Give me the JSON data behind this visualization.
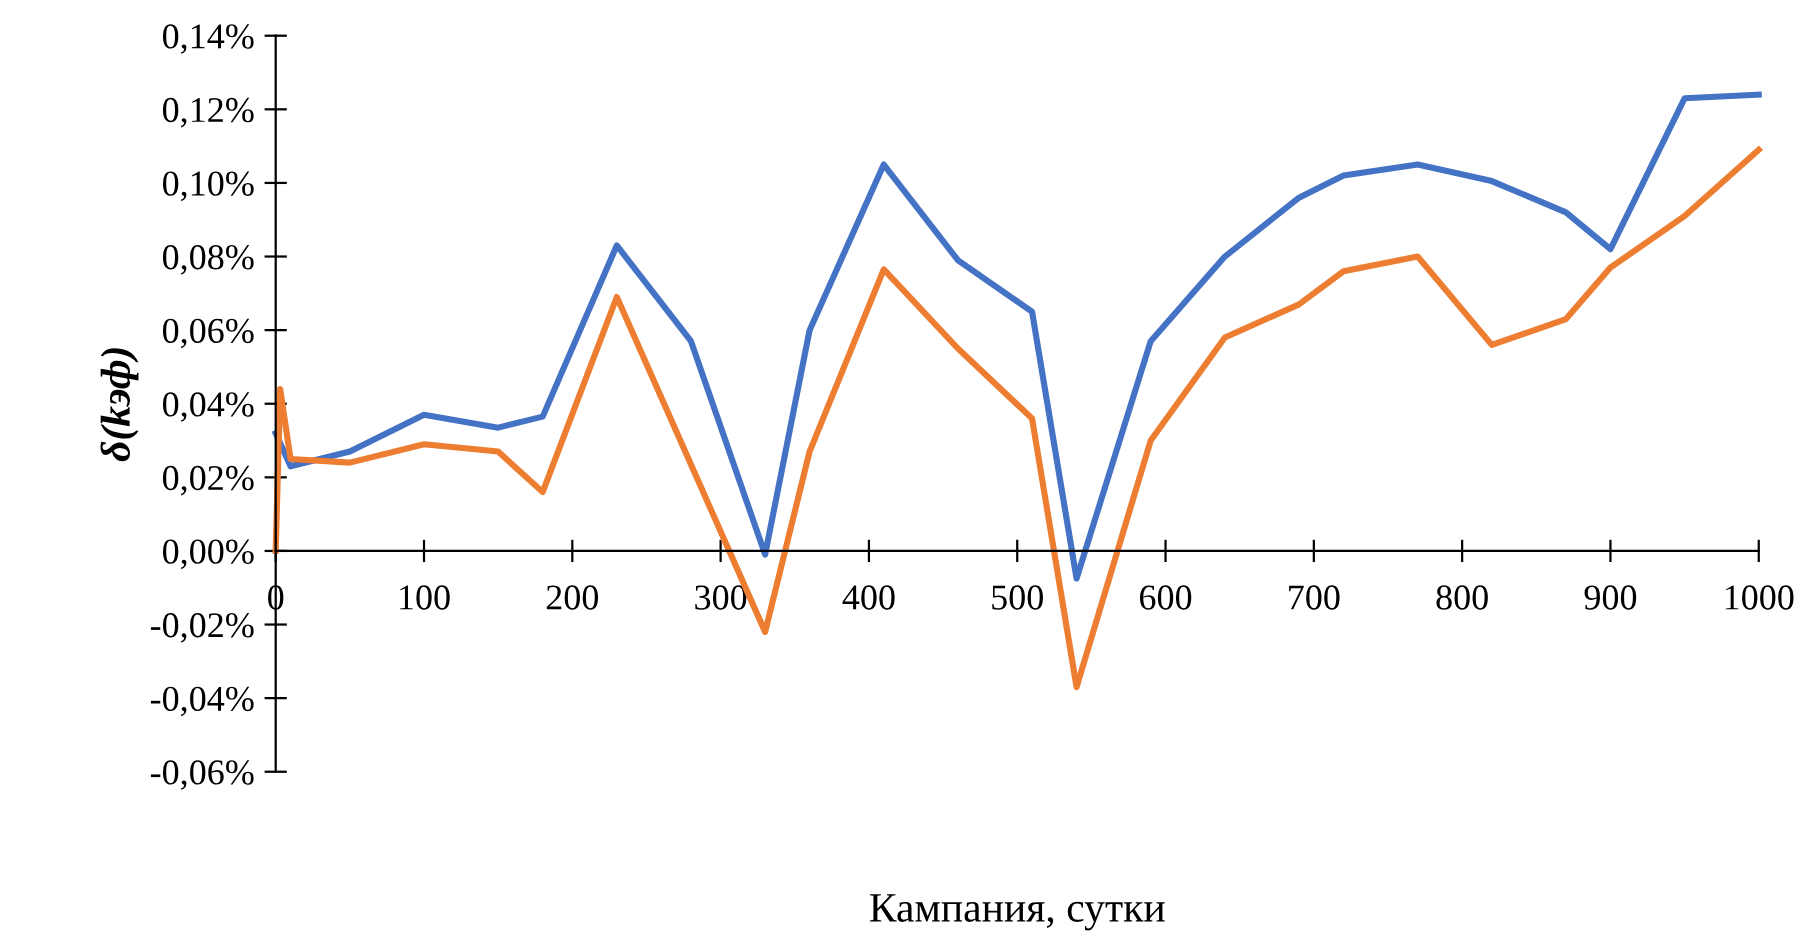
{
  "chart_data": {
    "type": "line",
    "xlabel": "Кампания, сутки",
    "ylabel": "δ(kэф)",
    "xlim": [
      0,
      1000
    ],
    "xticks": [
      0,
      100,
      200,
      300,
      400,
      500,
      600,
      700,
      800,
      900,
      1000
    ],
    "ylim": [
      -0.06,
      0.14
    ],
    "yticks": [
      {
        "value": -0.06,
        "label": "-0,06%"
      },
      {
        "value": -0.04,
        "label": "-0,04%"
      },
      {
        "value": -0.02,
        "label": "-0,02%"
      },
      {
        "value": 0,
        "label": "0,00%"
      },
      {
        "value": 0.02,
        "label": "0,02%"
      },
      {
        "value": 0.04,
        "label": "0,04%"
      },
      {
        "value": 0.06,
        "label": "0,06%"
      },
      {
        "value": 0.08,
        "label": "0,08%"
      },
      {
        "value": 0.1,
        "label": "0,10%"
      },
      {
        "value": 0.12,
        "label": "0,12%"
      },
      {
        "value": 0.14,
        "label": "0,14%"
      }
    ],
    "grid": false,
    "marker": "none",
    "line_style": "solid",
    "series": [
      {
        "color": "#4472c4",
        "x": [
          0,
          10,
          50,
          100,
          150,
          180,
          230,
          280,
          330,
          360,
          410,
          460,
          510,
          540,
          590,
          640,
          690,
          720,
          770,
          820,
          870,
          900,
          950,
          1000
        ],
        "values": [
          0.032,
          0.023,
          0.027,
          0.037,
          0.0335,
          0.0365,
          0.083,
          0.057,
          -0.001,
          0.06,
          0.105,
          0.079,
          0.065,
          -0.0075,
          0.057,
          0.08,
          0.096,
          0.102,
          0.105,
          0.1005,
          0.092,
          0.082,
          0.123,
          0.124
        ]
      },
      {
        "color": "#ed7d31",
        "x": [
          0,
          3,
          10,
          50,
          100,
          150,
          180,
          230,
          330,
          360,
          410,
          460,
          510,
          540,
          590,
          640,
          690,
          720,
          770,
          820,
          870,
          900,
          950,
          1000
        ],
        "values": [
          0,
          0.044,
          0.025,
          0.024,
          0.029,
          0.027,
          0.016,
          0.069,
          -0.022,
          0.027,
          0.0765,
          0.055,
          0.036,
          -0.037,
          0.03,
          0.058,
          0.067,
          0.076,
          0.08,
          0.056,
          0.063,
          0.077,
          0.091,
          0.109
        ]
      }
    ]
  }
}
